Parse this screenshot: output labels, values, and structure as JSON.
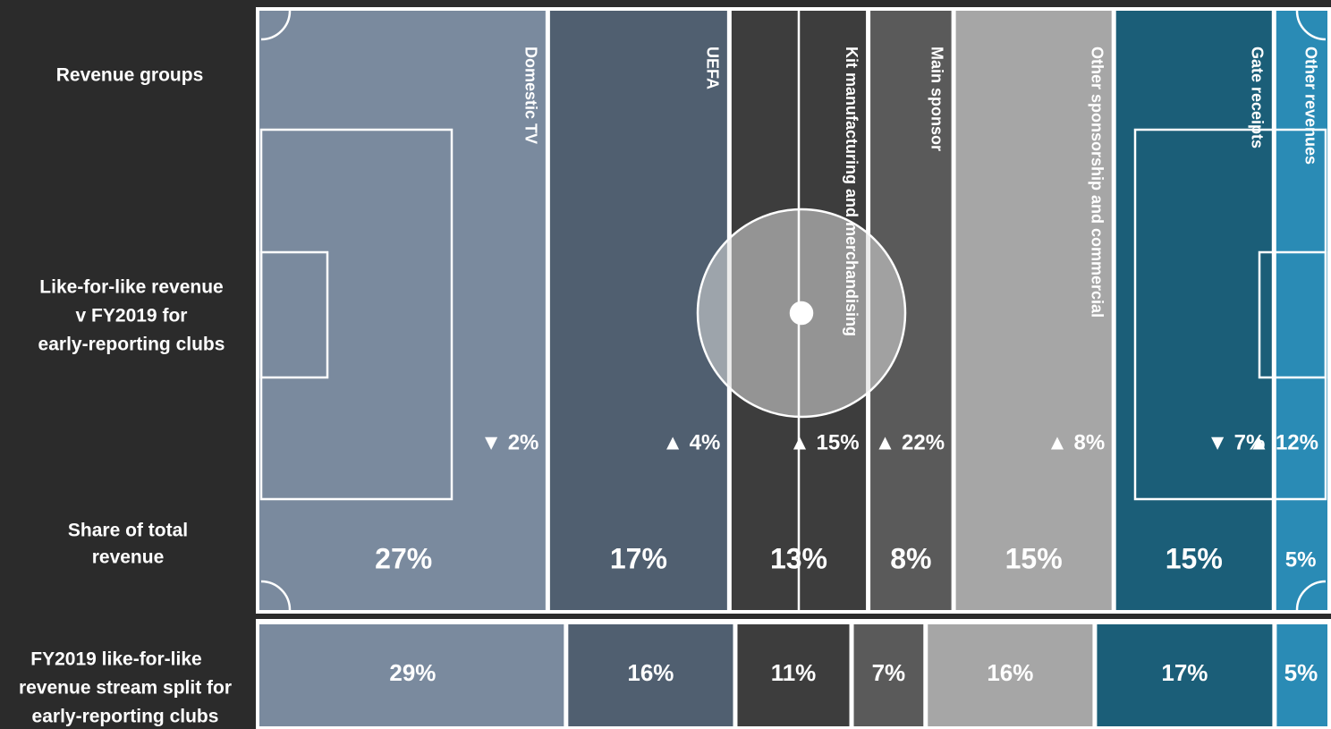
{
  "chart_data": {
    "type": "marimekko",
    "row_labels": {
      "groups": "Revenue groups",
      "change": [
        "Like-for-like revenue",
        "v FY2019 for",
        "early-reporting clubs"
      ],
      "share": [
        "Share of total",
        "revenue"
      ],
      "fy2019": [
        "FY2019 like-for-like",
        "revenue stream split for",
        "early-reporting clubs"
      ]
    },
    "categories": [
      "Domestic TV",
      "UEFA",
      "Kit manufacturing and merchandising",
      "Main sponsor",
      "Other sponsorship and commercial",
      "Gate receipts",
      "Other revenues"
    ],
    "colors": [
      "#7a8a9e",
      "#505f70",
      "#3d3d3d",
      "#5a5a5a",
      "#a6a6a6",
      "#1b5e78",
      "#2a8bb5"
    ],
    "share": {
      "values": [
        27,
        17,
        13,
        8,
        15,
        15,
        5
      ],
      "value_labels": [
        "27%",
        "17%",
        "13%",
        "8%",
        "15%",
        "15%",
        "5%"
      ]
    },
    "change": {
      "values": [
        -2,
        4,
        15,
        22,
        8,
        -7,
        12
      ],
      "value_labels": [
        "▼ 2%",
        "▲ 4%",
        "▲ 15%",
        "▲ 22%",
        "▲ 8%",
        "▼ 7%",
        "▲ 12%"
      ]
    },
    "fy2019": {
      "values": [
        29,
        16,
        11,
        7,
        16,
        17,
        5
      ],
      "value_labels": [
        "29%",
        "16%",
        "11%",
        "7%",
        "16%",
        "17%",
        "5%"
      ]
    }
  }
}
